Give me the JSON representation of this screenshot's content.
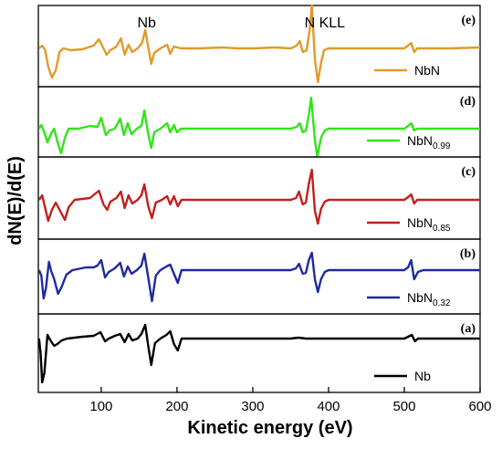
{
  "chart_data": {
    "type": "line",
    "xlabel": "Kinetic energy (eV)",
    "ylabel": "dN(E)/d(E)",
    "xlim": [
      17,
      600
    ],
    "x_ticks": [
      "100",
      "200",
      "300",
      "400",
      "500",
      "600"
    ],
    "x_tick_values": [
      100,
      200,
      300,
      400,
      500,
      600
    ],
    "annotations": [
      {
        "text": "Nb",
        "x": 160
      },
      {
        "text": "N KLL",
        "x": 395
      }
    ],
    "panels": [
      {
        "label": "(e)",
        "legend": {
          "base": "NbN",
          "sub": ""
        },
        "color": "#E29A29",
        "points": [
          [
            18,
            0
          ],
          [
            22,
            3
          ],
          [
            26,
            -2
          ],
          [
            30,
            -20
          ],
          [
            35,
            -32
          ],
          [
            40,
            -24
          ],
          [
            45,
            -4
          ],
          [
            50,
            0
          ],
          [
            60,
            -2
          ],
          [
            75,
            -1
          ],
          [
            90,
            3
          ],
          [
            97,
            10
          ],
          [
            103,
            0
          ],
          [
            107,
            -7
          ],
          [
            112,
            -2
          ],
          [
            120,
            2
          ],
          [
            126,
            11
          ],
          [
            131,
            -7
          ],
          [
            136,
            4
          ],
          [
            141,
            -4
          ],
          [
            148,
            0
          ],
          [
            154,
            6
          ],
          [
            158,
            20
          ],
          [
            163,
            -3
          ],
          [
            166,
            -17
          ],
          [
            170,
            -5
          ],
          [
            178,
            0
          ],
          [
            187,
            4
          ],
          [
            191,
            -6
          ],
          [
            196,
            2
          ],
          [
            205,
            0
          ],
          [
            230,
            0
          ],
          [
            260,
            1
          ],
          [
            280,
            0
          ],
          [
            300,
            0
          ],
          [
            330,
            1
          ],
          [
            350,
            0
          ],
          [
            358,
            3
          ],
          [
            362,
            8
          ],
          [
            366,
            -4
          ],
          [
            371,
            -2
          ],
          [
            375,
            20
          ],
          [
            378,
            47
          ],
          [
            382,
            -12
          ],
          [
            386,
            -37
          ],
          [
            390,
            -16
          ],
          [
            394,
            -2
          ],
          [
            400,
            0
          ],
          [
            450,
            0
          ],
          [
            500,
            0
          ],
          [
            505,
            3
          ],
          [
            509,
            6
          ],
          [
            513,
            -4
          ],
          [
            517,
            0
          ],
          [
            530,
            0
          ],
          [
            560,
            0
          ],
          [
            600,
            1
          ]
        ]
      },
      {
        "label": "(d)",
        "legend": {
          "base": "NbN",
          "sub": "0.99"
        },
        "color": "#33E31B",
        "points": [
          [
            18,
            0
          ],
          [
            21,
            4
          ],
          [
            25,
            -4
          ],
          [
            29,
            -15
          ],
          [
            34,
            -5
          ],
          [
            38,
            0
          ],
          [
            42,
            -14
          ],
          [
            47,
            -27
          ],
          [
            52,
            -10
          ],
          [
            57,
            0
          ],
          [
            70,
            0
          ],
          [
            85,
            3
          ],
          [
            95,
            2
          ],
          [
            100,
            12
          ],
          [
            106,
            -7
          ],
          [
            111,
            -2
          ],
          [
            118,
            0
          ],
          [
            125,
            11
          ],
          [
            130,
            -7
          ],
          [
            135,
            6
          ],
          [
            140,
            -6
          ],
          [
            147,
            0
          ],
          [
            153,
            3
          ],
          [
            157,
            20
          ],
          [
            162,
            -6
          ],
          [
            166,
            -21
          ],
          [
            170,
            -4
          ],
          [
            178,
            0
          ],
          [
            187,
            6
          ],
          [
            191,
            -4
          ],
          [
            196,
            4
          ],
          [
            200,
            -4
          ],
          [
            205,
            0
          ],
          [
            240,
            0
          ],
          [
            280,
            0
          ],
          [
            320,
            0
          ],
          [
            350,
            0
          ],
          [
            358,
            2
          ],
          [
            362,
            6
          ],
          [
            366,
            -4
          ],
          [
            370,
            -2
          ],
          [
            374,
            15
          ],
          [
            377,
            34
          ],
          [
            382,
            -12
          ],
          [
            385,
            -31
          ],
          [
            390,
            -10
          ],
          [
            395,
            -2
          ],
          [
            400,
            0
          ],
          [
            450,
            0
          ],
          [
            500,
            0
          ],
          [
            505,
            3
          ],
          [
            509,
            6
          ],
          [
            513,
            -2
          ],
          [
            517,
            0
          ],
          [
            560,
            0
          ],
          [
            600,
            0
          ]
        ]
      },
      {
        "label": "(c)",
        "legend": {
          "base": "NbN",
          "sub": "0.85"
        },
        "color": "#C1201E",
        "points": [
          [
            18,
            0
          ],
          [
            22,
            5
          ],
          [
            26,
            -9
          ],
          [
            30,
            -23
          ],
          [
            35,
            -11
          ],
          [
            40,
            -3
          ],
          [
            47,
            -14
          ],
          [
            52,
            -22
          ],
          [
            57,
            -8
          ],
          [
            65,
            0
          ],
          [
            85,
            2
          ],
          [
            97,
            10
          ],
          [
            103,
            -5
          ],
          [
            108,
            -11
          ],
          [
            112,
            -2
          ],
          [
            120,
            2
          ],
          [
            126,
            9
          ],
          [
            131,
            -9
          ],
          [
            136,
            5
          ],
          [
            141,
            -4
          ],
          [
            148,
            0
          ],
          [
            153,
            5
          ],
          [
            157,
            17
          ],
          [
            162,
            -7
          ],
          [
            167,
            -20
          ],
          [
            172,
            -3
          ],
          [
            180,
            0
          ],
          [
            187,
            4
          ],
          [
            191,
            -5
          ],
          [
            196,
            4
          ],
          [
            201,
            -7
          ],
          [
            206,
            0
          ],
          [
            240,
            0
          ],
          [
            280,
            0
          ],
          [
            320,
            0
          ],
          [
            350,
            0
          ],
          [
            357,
            2
          ],
          [
            361,
            9
          ],
          [
            366,
            -5
          ],
          [
            370,
            -3
          ],
          [
            374,
            18
          ],
          [
            378,
            33
          ],
          [
            382,
            -12
          ],
          [
            386,
            -26
          ],
          [
            390,
            -10
          ],
          [
            395,
            -2
          ],
          [
            400,
            0
          ],
          [
            450,
            0
          ],
          [
            500,
            0
          ],
          [
            505,
            3
          ],
          [
            509,
            6
          ],
          [
            513,
            -4
          ],
          [
            517,
            0
          ],
          [
            560,
            0
          ],
          [
            600,
            0
          ]
        ]
      },
      {
        "label": "(b)",
        "legend": {
          "base": "NbN",
          "sub": "0.32"
        },
        "color": "#1F2A9E",
        "points": [
          [
            18,
            0
          ],
          [
            21,
            -6
          ],
          [
            24,
            -31
          ],
          [
            27,
            -20
          ],
          [
            31,
            9
          ],
          [
            34,
            -1
          ],
          [
            38,
            -10
          ],
          [
            43,
            -26
          ],
          [
            48,
            -18
          ],
          [
            54,
            -5
          ],
          [
            62,
            0
          ],
          [
            80,
            3
          ],
          [
            90,
            3
          ],
          [
            95,
            5
          ],
          [
            100,
            11
          ],
          [
            105,
            -8
          ],
          [
            110,
            -2
          ],
          [
            118,
            2
          ],
          [
            125,
            8
          ],
          [
            130,
            -7
          ],
          [
            135,
            4
          ],
          [
            140,
            -4
          ],
          [
            147,
            0
          ],
          [
            153,
            5
          ],
          [
            157,
            18
          ],
          [
            162,
            -8
          ],
          [
            167,
            -34
          ],
          [
            172,
            -6
          ],
          [
            178,
            0
          ],
          [
            186,
            4
          ],
          [
            191,
            6
          ],
          [
            196,
            -4
          ],
          [
            201,
            -14
          ],
          [
            206,
            0
          ],
          [
            240,
            0
          ],
          [
            280,
            0
          ],
          [
            320,
            0
          ],
          [
            350,
            0
          ],
          [
            357,
            2
          ],
          [
            361,
            7
          ],
          [
            366,
            -4
          ],
          [
            370,
            -3
          ],
          [
            374,
            11
          ],
          [
            378,
            19
          ],
          [
            382,
            -10
          ],
          [
            386,
            -24
          ],
          [
            390,
            -10
          ],
          [
            395,
            -2
          ],
          [
            400,
            0
          ],
          [
            450,
            0
          ],
          [
            500,
            0
          ],
          [
            505,
            3
          ],
          [
            509,
            11
          ],
          [
            513,
            -10
          ],
          [
            518,
            -2
          ],
          [
            525,
            0
          ],
          [
            560,
            0
          ],
          [
            600,
            0
          ]
        ]
      },
      {
        "label": "(a)",
        "legend": {
          "base": "Nb",
          "sub": ""
        },
        "color": "#000000",
        "points": [
          [
            18,
            0
          ],
          [
            20,
            -16
          ],
          [
            22,
            -48
          ],
          [
            25,
            -38
          ],
          [
            29,
            4
          ],
          [
            33,
            -2
          ],
          [
            38,
            -8
          ],
          [
            42,
            -6
          ],
          [
            48,
            -2
          ],
          [
            55,
            0
          ],
          [
            75,
            2
          ],
          [
            90,
            3
          ],
          [
            99,
            7
          ],
          [
            105,
            -3
          ],
          [
            110,
            0
          ],
          [
            118,
            3
          ],
          [
            125,
            5
          ],
          [
            131,
            -4
          ],
          [
            136,
            5
          ],
          [
            141,
            -2
          ],
          [
            148,
            0
          ],
          [
            153,
            5
          ],
          [
            158,
            15
          ],
          [
            162,
            -8
          ],
          [
            166,
            -29
          ],
          [
            171,
            -5
          ],
          [
            178,
            0
          ],
          [
            186,
            4
          ],
          [
            191,
            8
          ],
          [
            196,
            -6
          ],
          [
            201,
            -13
          ],
          [
            206,
            0
          ],
          [
            240,
            0
          ],
          [
            280,
            0
          ],
          [
            320,
            0
          ],
          [
            350,
            0
          ],
          [
            360,
            1
          ],
          [
            370,
            0
          ],
          [
            400,
            0
          ],
          [
            450,
            0
          ],
          [
            500,
            0
          ],
          [
            505,
            2
          ],
          [
            510,
            4
          ],
          [
            514,
            -3
          ],
          [
            518,
            0
          ],
          [
            560,
            0
          ],
          [
            600,
            0
          ]
        ]
      }
    ]
  }
}
